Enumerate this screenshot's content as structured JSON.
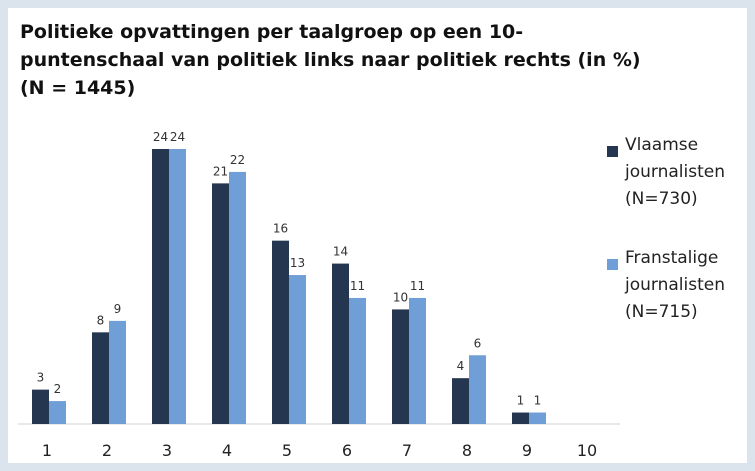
{
  "chart_data": {
    "type": "bar",
    "title": "Politieke opvattingen per taalgroep op een 10-puntenschaal van politiek links naar politiek rechts (in %)",
    "subtitle": "(N = 1445)",
    "categories": [
      "1",
      "2",
      "3",
      "4",
      "5",
      "6",
      "7",
      "8",
      "9",
      "10"
    ],
    "series": [
      {
        "name": "Vlaamse journalisten (N=730)",
        "color": "#243650",
        "values": [
          3,
          8,
          24,
          21,
          16,
          14,
          10,
          4,
          1,
          null
        ]
      },
      {
        "name": "Franstalige journalisten (N=715)",
        "color": "#6f9fd6",
        "values": [
          2,
          9,
          24,
          22,
          13,
          11,
          11,
          6,
          1,
          null
        ]
      }
    ],
    "legend": "right"
  }
}
